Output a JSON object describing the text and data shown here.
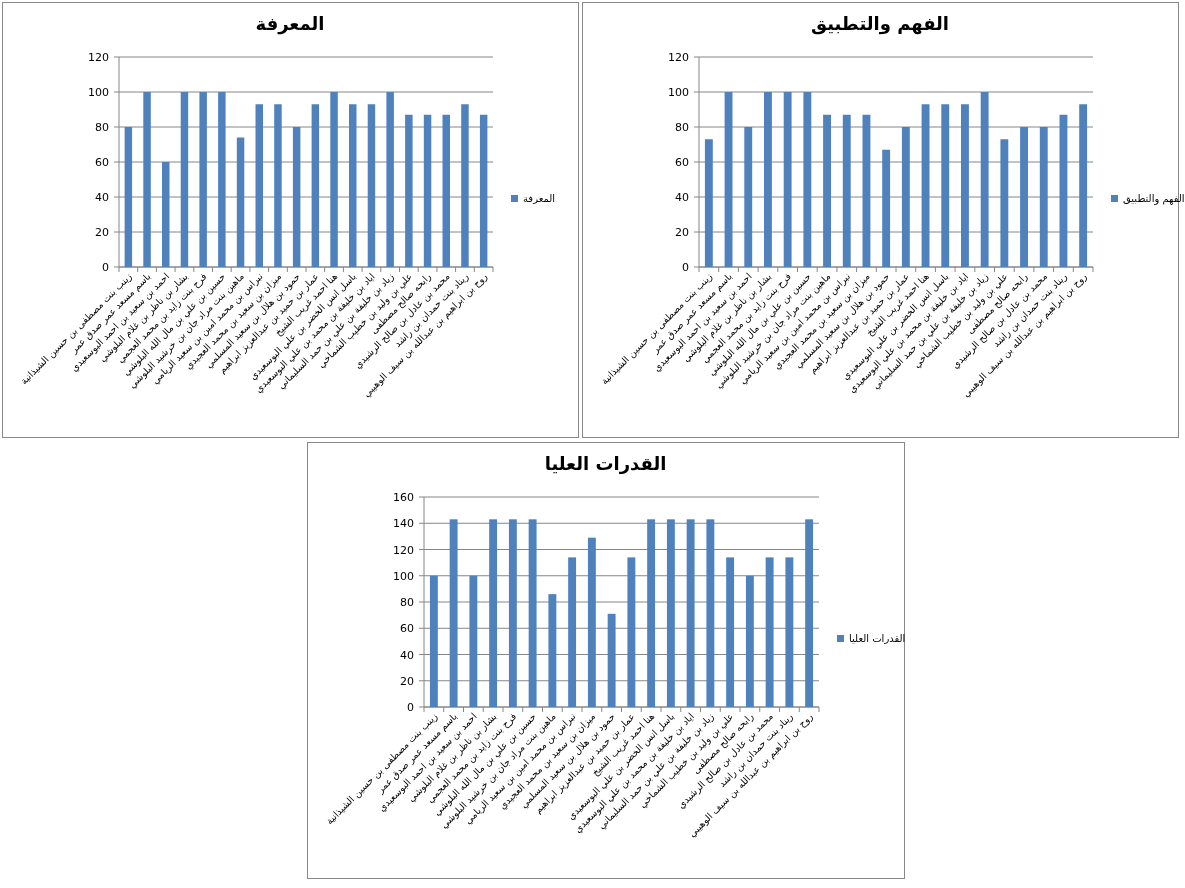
{
  "chart_data": [
    {
      "type": "bar",
      "title": "المعرفة",
      "categories": [
        "زينب بنت مصطفى بن حسين الشيذانية",
        "باسم مسعد عمر صدق عمر",
        "احمد بن سعيد بن احمد البوسعيدي",
        "بشار بن ناظر بن غلام البلوشي",
        "فرح بنت زايد بن محمد العجمي",
        "حسين بن علي بن مال الله البلوشي",
        "ماهين بنت مراد جان بن خرشيد البلوشي",
        "نبراس بن محمد امين بن سعيد الريامي",
        "ميزان بن سعيد بن محمد العجيدي",
        "حمود بن هلال بن سعيد المسلمي",
        "عمار بن حميد بن عبدالعزيز ابراهيم",
        "هنا احمد غريب الشيخ",
        "باسل انس الخضر بن علي البوسعيدي",
        "اياد بن خليفة بن محمد بن علي البوسعيدي",
        "زياد بن خليفة بن علي بن حمد السليماني",
        "علي بن وليد بن خطيب الشماخي",
        "رابحه صالح مصطفى",
        "محمد بن عادل بن صالح الرشيدي",
        "ريناد بنت حمدان بن راشد",
        "روح بن ابراهيم بن عبدالله بن سيف الوهيبي"
      ],
      "series": [
        {
          "name": "المعرفة",
          "color": "#4f81bd",
          "values": [
            80,
            100,
            60,
            100,
            100,
            100,
            74,
            93,
            93,
            80,
            93,
            100,
            93,
            93,
            100,
            87,
            87,
            87,
            93,
            87
          ]
        }
      ],
      "ylim": [
        0,
        120
      ],
      "yticks": [
        0,
        20,
        40,
        60,
        80,
        100,
        120
      ],
      "grid": "y",
      "legend": "right"
    },
    {
      "type": "bar",
      "title": "الفهم والتطبيق",
      "categories": [
        "زينب بنت مصطفى بن حسين الشيذانية",
        "باسم مسعد عمر صدق عمر",
        "احمد بن سعيد بن احمد البوسعيدي",
        "بشار بن ناظر بن غلام البلوشي",
        "فرح بنت زايد بن محمد العجمي",
        "حسين بن علي بن مال الله البلوشي",
        "ماهين بنت مراد جان بن خرشيد البلوشي",
        "نبراس بن محمد امين بن سعيد الريامي",
        "ميزان بن سعيد بن محمد العجيدي",
        "حمود بن هلال بن سعيد المسلمي",
        "عمار بن حميد بن عبدالعزيز ابراهيم",
        "هنا احمد غريب الشيخ",
        "باسل انس الخضر بن علي البوسعيدي",
        "اياد بن خليفة بن محمد بن علي البوسعيدي",
        "زياد بن خليفة بن علي بن حمد السليماني",
        "علي بن وليد بن خطيب الشماخي",
        "رابحه صالح مصطفى",
        "محمد بن عادل بن صالح الرشيدي",
        "ريناد بنت حمدان بن راشد",
        "روح بن ابراهيم بن عبدالله بن سيف الوهيبي"
      ],
      "series": [
        {
          "name": "الفهم والتطبيق",
          "color": "#4f81bd",
          "values": [
            73,
            100,
            80,
            100,
            100,
            100,
            87,
            87,
            87,
            67,
            80,
            93,
            93,
            93,
            100,
            73,
            80,
            80,
            87,
            93
          ]
        }
      ],
      "ylim": [
        0,
        120
      ],
      "yticks": [
        0,
        20,
        40,
        60,
        80,
        100,
        120
      ],
      "grid": "y",
      "legend": "right"
    },
    {
      "type": "bar",
      "title": "القدرات العليا",
      "categories": [
        "زينب بنت مصطفى بن حسين الشيذانية",
        "باسم مسعد عمر صدق عمر",
        "احمد بن سعيد بن احمد البوسعيدي",
        "بشار بن ناظر بن غلام البلوشي",
        "فرح بنت زايد بن محمد العجمي",
        "حسين بن علي بن مال الله البلوشي",
        "ماهين بنت مراد جان بن خرشيد البلوشي",
        "نبراس بن محمد امين بن سعيد الريامي",
        "ميزان بن سعيد بن محمد العجيدي",
        "حمود بن هلال بن سعيد المسلمي",
        "عمار بن حميد بن عبدالعزيز ابراهيم",
        "هنا احمد غريب الشيخ",
        "باسل انس الخضر بن علي البوسعيدي",
        "اياد بن خليفة بن محمد بن علي البوسعيدي",
        "زياد بن خليفة بن علي بن حمد السليماني",
        "علي بن وليد بن خطيب الشماخي",
        "رابحه صالح مصطفى",
        "محمد بن عادل بن صالح الرشيدي",
        "ريناد بنت حمدان بن راشد",
        "روح بن ابراهيم بن عبدالله بن سيف الوهيبي"
      ],
      "series": [
        {
          "name": "القدرات العليا",
          "color": "#4f81bd",
          "values": [
            100,
            143,
            100,
            143,
            143,
            143,
            86,
            114,
            129,
            71,
            114,
            143,
            143,
            143,
            143,
            114,
            100,
            114,
            114,
            143
          ]
        }
      ],
      "ylim": [
        0,
        160
      ],
      "yticks": [
        0,
        20,
        40,
        60,
        80,
        100,
        120,
        140,
        160
      ],
      "grid": "y",
      "legend": "right"
    }
  ]
}
